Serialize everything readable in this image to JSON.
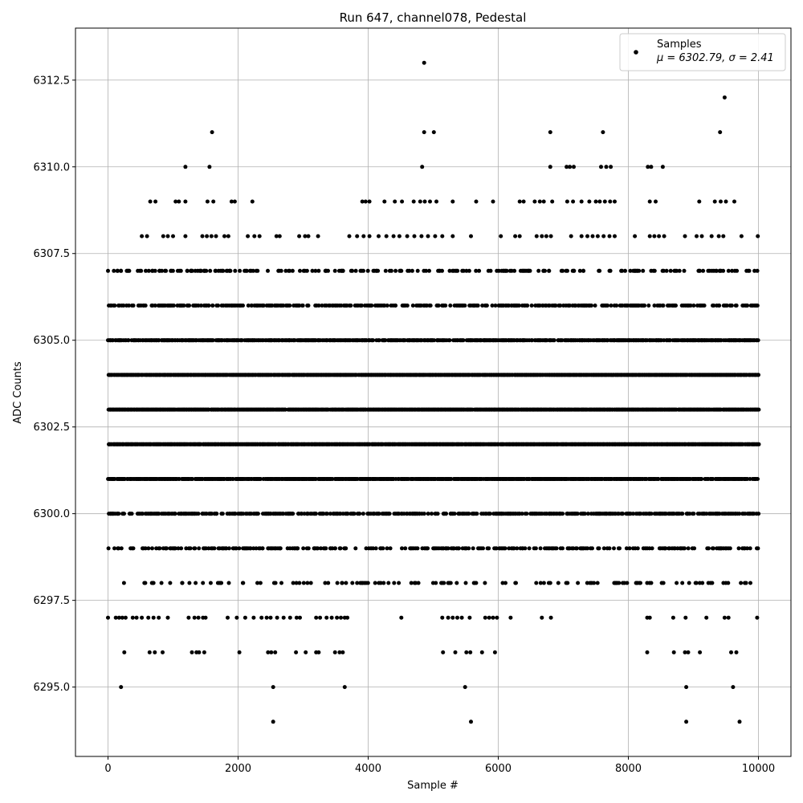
{
  "chart_data": {
    "type": "scatter",
    "title": "Run 647, channel078, Pedestal",
    "xlabel": "Sample #",
    "ylabel": "ADC Counts",
    "xlim": [
      -500,
      10500
    ],
    "ylim": [
      6293,
      6314
    ],
    "xticks": [
      0,
      2000,
      4000,
      6000,
      8000,
      10000
    ],
    "xtick_labels": [
      "0",
      "2000",
      "4000",
      "6000",
      "8000",
      "10000"
    ],
    "yticks": [
      6295.0,
      6297.5,
      6300.0,
      6302.5,
      6305.0,
      6307.5,
      6310.0,
      6312.5
    ],
    "ytick_labels": [
      "6295.0",
      "6297.5",
      "6300.0",
      "6302.5",
      "6305.0",
      "6307.5",
      "6310.0",
      "6312.5"
    ],
    "grid": true,
    "legend_position": "top-right",
    "marker_color": "#000000",
    "series": [
      {
        "name": "Samples",
        "stats_label": "μ = 6302.79, σ = 2.41",
        "mean": 6302.79,
        "sigma": 2.41,
        "n_samples": 10000,
        "dense_levels": [
          6298,
          6299,
          6300,
          6301,
          6302,
          6303,
          6304,
          6305,
          6306,
          6307
        ],
        "points": [
          [
            200,
            6295
          ],
          [
            2540,
            6295
          ],
          [
            3640,
            6295
          ],
          [
            5490,
            6295
          ],
          [
            8890,
            6295
          ],
          [
            9610,
            6295
          ],
          [
            2540,
            6294
          ],
          [
            5580,
            6294
          ],
          [
            8890,
            6294
          ],
          [
            9710,
            6294
          ],
          [
            4860,
            6313
          ],
          [
            9480,
            6312
          ],
          [
            1600,
            6311
          ],
          [
            4860,
            6311
          ],
          [
            5010,
            6311
          ],
          [
            6800,
            6311
          ],
          [
            7610,
            6311
          ],
          [
            9410,
            6311
          ],
          [
            1190,
            6310
          ],
          [
            1560,
            6310
          ],
          [
            4830,
            6310
          ],
          [
            6800,
            6310
          ],
          [
            7050,
            6310
          ],
          [
            7100,
            6310
          ],
          [
            7160,
            6310
          ],
          [
            7580,
            6310
          ],
          [
            7660,
            6310
          ],
          [
            7730,
            6310
          ],
          [
            8300,
            6310
          ],
          [
            8350,
            6310
          ],
          [
            8530,
            6310
          ],
          [
            650,
            6309
          ],
          [
            730,
            6309
          ],
          [
            1040,
            6309
          ],
          [
            1090,
            6309
          ],
          [
            1190,
            6309
          ],
          [
            1530,
            6309
          ],
          [
            1620,
            6309
          ],
          [
            1900,
            6309
          ],
          [
            1950,
            6309
          ],
          [
            2220,
            6309
          ],
          [
            3910,
            6309
          ],
          [
            3960,
            6309
          ],
          [
            4020,
            6309
          ],
          [
            4250,
            6309
          ],
          [
            4410,
            6309
          ],
          [
            4520,
            6309
          ],
          [
            4700,
            6309
          ],
          [
            4800,
            6309
          ],
          [
            4870,
            6309
          ],
          [
            4950,
            6309
          ],
          [
            5050,
            6309
          ],
          [
            5300,
            6309
          ],
          [
            5660,
            6309
          ],
          [
            5920,
            6309
          ],
          [
            6330,
            6309
          ],
          [
            6390,
            6309
          ],
          [
            6560,
            6309
          ],
          [
            6640,
            6309
          ],
          [
            6700,
            6309
          ],
          [
            6830,
            6309
          ],
          [
            7060,
            6309
          ],
          [
            7150,
            6309
          ],
          [
            7280,
            6309
          ],
          [
            7400,
            6309
          ],
          [
            7500,
            6309
          ],
          [
            7560,
            6309
          ],
          [
            7640,
            6309
          ],
          [
            7720,
            6309
          ],
          [
            7790,
            6309
          ],
          [
            8330,
            6309
          ],
          [
            8420,
            6309
          ],
          [
            9090,
            6309
          ],
          [
            9330,
            6309
          ],
          [
            9420,
            6309
          ],
          [
            9500,
            6309
          ],
          [
            9630,
            6309
          ],
          [
            520,
            6308
          ],
          [
            600,
            6308
          ],
          [
            850,
            6308
          ],
          [
            920,
            6308
          ],
          [
            1000,
            6308
          ],
          [
            1190,
            6308
          ],
          [
            1450,
            6308
          ],
          [
            1520,
            6308
          ],
          [
            1590,
            6308
          ],
          [
            1660,
            6308
          ],
          [
            1790,
            6308
          ],
          [
            1850,
            6308
          ],
          [
            2150,
            6308
          ],
          [
            2250,
            6308
          ],
          [
            2330,
            6308
          ],
          [
            2590,
            6308
          ],
          [
            2640,
            6308
          ],
          [
            2940,
            6308
          ],
          [
            3030,
            6308
          ],
          [
            3080,
            6308
          ],
          [
            3230,
            6308
          ],
          [
            3710,
            6308
          ],
          [
            3830,
            6308
          ],
          [
            3930,
            6308
          ],
          [
            4020,
            6308
          ],
          [
            4160,
            6308
          ],
          [
            4280,
            6308
          ],
          [
            4390,
            6308
          ],
          [
            4480,
            6308
          ],
          [
            4600,
            6308
          ],
          [
            4710,
            6308
          ],
          [
            4820,
            6308
          ],
          [
            4920,
            6308
          ],
          [
            5030,
            6308
          ],
          [
            5140,
            6308
          ],
          [
            5300,
            6308
          ],
          [
            5580,
            6308
          ],
          [
            6040,
            6308
          ],
          [
            6260,
            6308
          ],
          [
            6330,
            6308
          ],
          [
            6590,
            6308
          ],
          [
            6670,
            6308
          ],
          [
            6740,
            6308
          ],
          [
            6810,
            6308
          ],
          [
            7120,
            6308
          ],
          [
            7280,
            6308
          ],
          [
            7370,
            6308
          ],
          [
            7450,
            6308
          ],
          [
            7530,
            6308
          ],
          [
            7620,
            6308
          ],
          [
            7710,
            6308
          ],
          [
            7790,
            6308
          ],
          [
            8100,
            6308
          ],
          [
            8330,
            6308
          ],
          [
            8400,
            6308
          ],
          [
            8470,
            6308
          ],
          [
            8550,
            6308
          ],
          [
            8870,
            6308
          ],
          [
            9050,
            6308
          ],
          [
            9130,
            6308
          ],
          [
            9280,
            6308
          ],
          [
            9390,
            6308
          ],
          [
            9460,
            6308
          ],
          [
            9740,
            6308
          ],
          [
            9990,
            6308
          ],
          [
            0,
            6307
          ],
          [
            90,
            6307
          ],
          [
            200,
            6307
          ],
          [
            300,
            6307
          ],
          [
            580,
            6307
          ],
          [
            680,
            6307
          ],
          [
            790,
            6307
          ],
          [
            890,
            6307
          ],
          [
            1100,
            6307
          ],
          [
            1220,
            6307
          ],
          [
            1280,
            6307
          ],
          [
            1430,
            6307
          ],
          [
            1570,
            6307
          ],
          [
            1650,
            6307
          ],
          [
            1870,
            6307
          ],
          [
            2200,
            6307
          ],
          [
            2300,
            6307
          ],
          [
            2620,
            6307
          ],
          [
            2950,
            6307
          ],
          [
            3060,
            6307
          ],
          [
            3240,
            6307
          ],
          [
            3350,
            6307
          ],
          [
            3490,
            6307
          ],
          [
            3590,
            6307
          ],
          [
            0,
            6297
          ],
          [
            120,
            6297
          ],
          [
            170,
            6297
          ],
          [
            220,
            6297
          ],
          [
            270,
            6297
          ],
          [
            380,
            6297
          ],
          [
            440,
            6297
          ],
          [
            520,
            6297
          ],
          [
            620,
            6297
          ],
          [
            700,
            6297
          ],
          [
            780,
            6297
          ],
          [
            920,
            6297
          ],
          [
            1240,
            6297
          ],
          [
            1330,
            6297
          ],
          [
            1390,
            6297
          ],
          [
            1460,
            6297
          ],
          [
            1500,
            6297
          ],
          [
            1840,
            6297
          ],
          [
            1980,
            6297
          ],
          [
            2110,
            6297
          ],
          [
            2240,
            6297
          ],
          [
            2360,
            6297
          ],
          [
            2440,
            6297
          ],
          [
            2500,
            6297
          ],
          [
            2600,
            6297
          ],
          [
            2700,
            6297
          ],
          [
            2800,
            6297
          ],
          [
            2900,
            6297
          ],
          [
            2950,
            6297
          ],
          [
            3200,
            6297
          ],
          [
            3260,
            6297
          ],
          [
            3360,
            6297
          ],
          [
            3440,
            6297
          ],
          [
            3520,
            6297
          ],
          [
            3580,
            6297
          ],
          [
            3640,
            6297
          ],
          [
            3680,
            6297
          ],
          [
            4510,
            6297
          ],
          [
            5140,
            6297
          ],
          [
            5230,
            6297
          ],
          [
            5300,
            6297
          ],
          [
            5370,
            6297
          ],
          [
            5440,
            6297
          ],
          [
            5560,
            6297
          ],
          [
            5800,
            6297
          ],
          [
            5860,
            6297
          ],
          [
            5920,
            6297
          ],
          [
            5980,
            6297
          ],
          [
            6190,
            6297
          ],
          [
            6670,
            6297
          ],
          [
            6810,
            6297
          ],
          [
            8290,
            6297
          ],
          [
            8330,
            6297
          ],
          [
            8690,
            6297
          ],
          [
            8880,
            6297
          ],
          [
            9200,
            6297
          ],
          [
            9480,
            6297
          ],
          [
            9540,
            6297
          ],
          [
            9980,
            6297
          ],
          [
            250,
            6296
          ],
          [
            640,
            6296
          ],
          [
            720,
            6296
          ],
          [
            840,
            6296
          ],
          [
            1290,
            6296
          ],
          [
            1360,
            6296
          ],
          [
            1400,
            6296
          ],
          [
            1480,
            6296
          ],
          [
            2020,
            6296
          ],
          [
            2460,
            6296
          ],
          [
            2510,
            6296
          ],
          [
            2570,
            6296
          ],
          [
            2890,
            6296
          ],
          [
            3040,
            6296
          ],
          [
            3200,
            6296
          ],
          [
            3240,
            6296
          ],
          [
            3490,
            6296
          ],
          [
            3560,
            6296
          ],
          [
            3610,
            6296
          ],
          [
            5150,
            6296
          ],
          [
            5340,
            6296
          ],
          [
            5510,
            6296
          ],
          [
            5570,
            6296
          ],
          [
            5750,
            6296
          ],
          [
            5950,
            6296
          ],
          [
            8290,
            6296
          ],
          [
            8700,
            6296
          ],
          [
            8870,
            6296
          ],
          [
            8920,
            6296
          ],
          [
            9100,
            6296
          ],
          [
            9580,
            6296
          ],
          [
            9660,
            6296
          ]
        ]
      }
    ]
  }
}
